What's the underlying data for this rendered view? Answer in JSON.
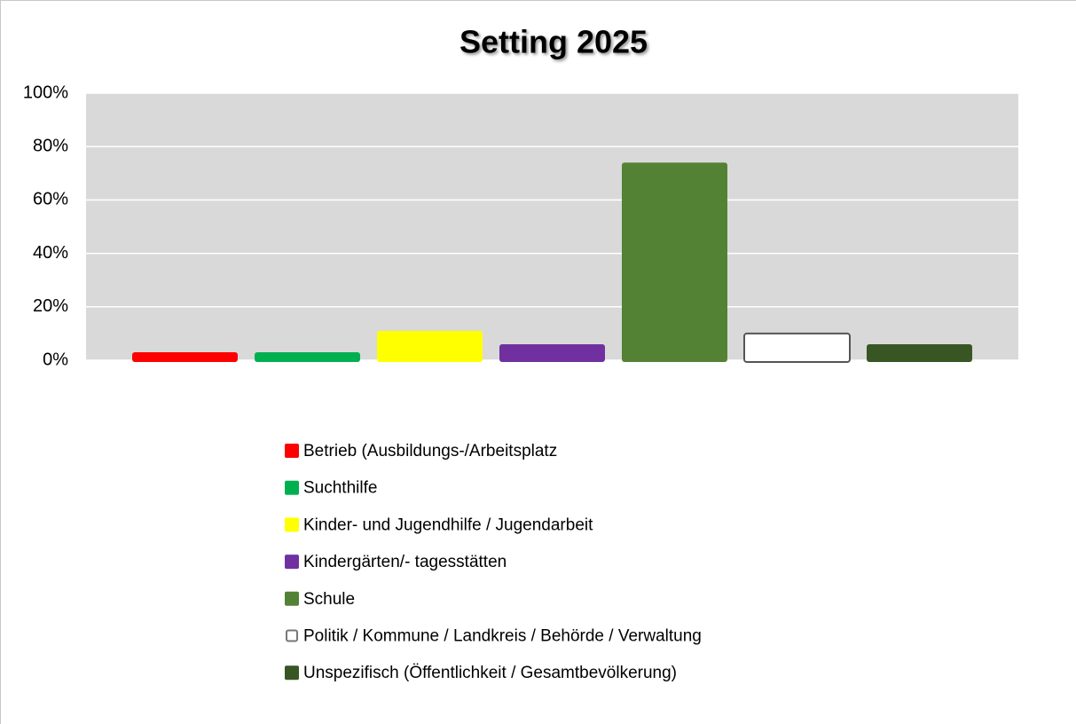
{
  "chart_data": {
    "type": "bar",
    "title": "Setting 2025",
    "categories": [
      null
    ],
    "series": [
      {
        "name": "Betrieb (Ausbildungs-/Arbeitsplatz",
        "color": "#ff0000",
        "values": [
          3
        ]
      },
      {
        "name": "Suchthilfe",
        "color": "#00b050",
        "values": [
          3
        ]
      },
      {
        "name": "Kinder- und Jugendhilfe / Jugendarbeit",
        "color": "#ffff00",
        "values": [
          11
        ]
      },
      {
        "name": "Kindergärten/- tagesstätten",
        "color": "#7030a0",
        "values": [
          6
        ]
      },
      {
        "name": "Schule",
        "color": "#548235",
        "values": [
          74
        ]
      },
      {
        "name": "Politik / Kommune / Landkreis / Behörde / Verwaltung",
        "color": "#ffffff",
        "values": [
          10
        ]
      },
      {
        "name": "Unspezifisch (Öffentlichkeit / Gesamtbevölkerung)",
        "color": "#375623",
        "values": [
          6
        ]
      }
    ],
    "ylim": [
      0,
      100
    ],
    "yticks": [
      {
        "value": 0,
        "label": "0%"
      },
      {
        "value": 20,
        "label": "20%"
      },
      {
        "value": 40,
        "label": "40%"
      },
      {
        "value": 60,
        "label": "60%"
      },
      {
        "value": 80,
        "label": "80%"
      },
      {
        "value": 100,
        "label": "100%"
      }
    ],
    "grid": true,
    "legend": "bottom",
    "background": "#d9d9d9"
  }
}
